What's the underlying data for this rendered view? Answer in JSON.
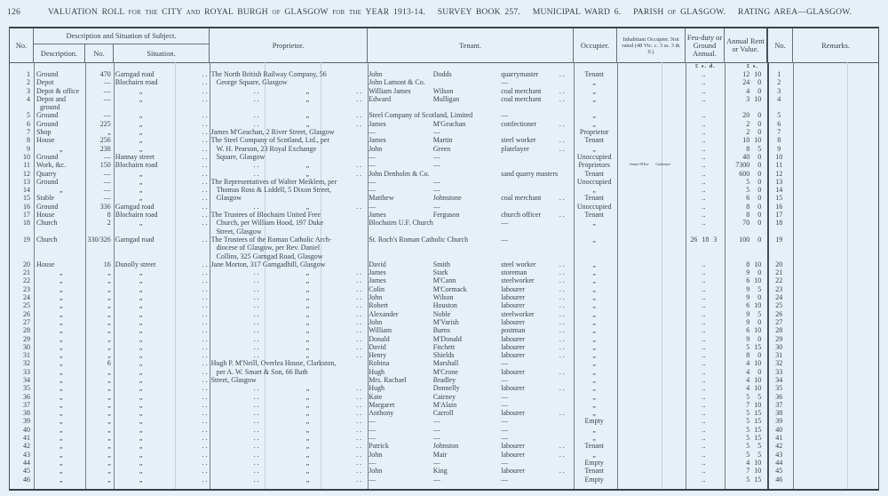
{
  "header": {
    "page_number": "126",
    "title": "VALUATION ROLL for the CITY and ROYAL BURGH of GLASGOW for the YEAR 1913-14.   SURVEY BOOK 257.   MUNICIPAL WARD 6.   PARISH of GLASGOW.   RATING AREA—GLASGOW."
  },
  "columns": {
    "no": "No.",
    "group": "Description and Situation of Subject.",
    "description": "Description.",
    "number": "No.",
    "situation": "Situation.",
    "proprietor": "Proprietor.",
    "tenant": "Tenant.",
    "occupier": "Occupier.",
    "inhabitant": "Inhabitant Occupier. Not rated (48 Vic. c. 3 ss. 3 & 9.)",
    "feu": "Feu-duty or Ground Annual.",
    "rent": "Annual Rent or Value.",
    "no2": "No.",
    "remarks": "Remarks.",
    "feu_units": "£ s. d.",
    "rent_units": "£ s."
  },
  "rows": [
    {
      "no": "1",
      "desc": [
        "Ground"
      ],
      "num": "470",
      "sit": "Garngad road",
      "prop": [
        "The North British Railway Company, 56"
      ],
      "ten": [
        "John",
        "Dodds",
        "quarrymaster"
      ],
      "occ": "Tenant",
      "feu": "..",
      "rent": [
        "12",
        "10"
      ]
    },
    {
      "no": "2",
      "desc": [
        "Depot"
      ],
      "num": "—",
      "sit": "Blochairn road",
      "prop": [
        "+George Square, Glasgow"
      ],
      "tenfull": "John Lamont & Co.",
      "tenocc": "—",
      "occ": "„",
      "feu": "..",
      "rent": [
        "24",
        "0"
      ]
    },
    {
      "no": "3",
      "desc": [
        "Depot & office"
      ],
      "num": "—",
      "sit": "„",
      "prop": [
        "„"
      ],
      "ten": [
        "William James",
        "Wilson",
        "coal merchant"
      ],
      "occ": "„",
      "feu": "..",
      "rent": [
        "4",
        "0"
      ]
    },
    {
      "no": "4",
      "desc": [
        "Depot and",
        "  ground"
      ],
      "num": "—",
      "sit": "„",
      "prop": [
        "„"
      ],
      "ten": [
        "Edward",
        "Mulligan",
        "coal merchant"
      ],
      "occ": "„",
      "feu": "..",
      "rent": [
        "3",
        "10"
      ]
    },
    {
      "no": "5",
      "desc": [
        "Ground"
      ],
      "num": "—",
      "sit": "„",
      "prop": [
        "„"
      ],
      "tenfull": "Steel Company of Scotland, Limited",
      "tenocc": "—",
      "occ": "„",
      "feu": "..",
      "rent": [
        "20",
        "0"
      ]
    },
    {
      "no": "6",
      "desc": [
        "Ground"
      ],
      "num": "225",
      "sit": "„",
      "prop": [
        "„"
      ],
      "ten": [
        "James",
        "M'Geachan",
        "confectioner"
      ],
      "occ": "„",
      "feu": "..",
      "rent": [
        "2",
        "0"
      ]
    },
    {
      "no": "7",
      "desc": [
        "Shop"
      ],
      "num": "„",
      "sit": "„",
      "prop": [
        "James M'Geachan, 2 River Street, Glasgow"
      ],
      "ten": [
        "—",
        "—",
        ""
      ],
      "occ": "Proprietor",
      "feu": "..",
      "rent": [
        "2",
        "0"
      ]
    },
    {
      "no": "8",
      "desc": [
        "House"
      ],
      "num": "256",
      "sit": "„",
      "prop": [
        "The Steel Company of Scotland, Ltd., per"
      ],
      "ten": [
        "James",
        "Martin",
        "steel worker"
      ],
      "occ": "Tenant",
      "feu": "..",
      "rent": [
        "10",
        "10"
      ]
    },
    {
      "no": "9",
      "desc": [
        "„"
      ],
      "num": "238",
      "sit": "„",
      "prop": [
        "+W. H. Pearson, 23 Royal Exchange"
      ],
      "ten": [
        "John",
        "Green",
        "platelayer"
      ],
      "occ": "„",
      "feu": "..",
      "rent": [
        "8",
        "5"
      ]
    },
    {
      "no": "10",
      "desc": [
        "Ground"
      ],
      "num": "—",
      "sit": "Hannay street",
      "prop": [
        "+Square, Glasgow"
      ],
      "ten": [
        "—",
        "—",
        ""
      ],
      "occ": "Unoccupied",
      "feu": "..",
      "rent": [
        "40",
        "0"
      ]
    },
    {
      "no": "11",
      "desc": [
        "Work, &c."
      ],
      "num": "150",
      "sit": "Blochairn road",
      "prop": [
        "„"
      ],
      "ten": [
        "—",
        "—",
        ""
      ],
      "occ": "Proprietors",
      "inh": [
        "Samuel M'Kee",
        "Gatekeeper"
      ],
      "feu": "..",
      "rent": [
        "7300",
        "0"
      ]
    },
    {
      "no": "12",
      "desc": [
        "Quarry"
      ],
      "num": "—",
      "sit": "„",
      "prop": [
        "„"
      ],
      "tenfull": "John Denholm & Co.",
      "tenocc": "sand quarry masters",
      "occ": "Tenant",
      "feu": "..",
      "rent": [
        "600",
        "0"
      ]
    },
    {
      "no": "13",
      "desc": [
        "Ground"
      ],
      "num": "—",
      "sit": "„",
      "prop": [
        "The Representatives of Walter Meiklem, per"
      ],
      "ten": [
        "—",
        "—",
        ""
      ],
      "occ": "Unoccupied",
      "feu": "..",
      "rent": [
        "5",
        "0"
      ]
    },
    {
      "no": "14",
      "desc": [
        "„"
      ],
      "num": "—",
      "sit": "„",
      "prop": [
        "+Thomas Ross & Liddell, 5 Dixon Street,"
      ],
      "ten": [
        "—",
        "—",
        ""
      ],
      "occ": "„",
      "feu": "..",
      "rent": [
        "5",
        "0"
      ]
    },
    {
      "no": "15",
      "desc": [
        "Stable"
      ],
      "num": "—",
      "sit": "„",
      "prop": [
        "+Glasgow"
      ],
      "ten": [
        "Matthew",
        "Johnstone",
        "coal merchant"
      ],
      "occ": "Tenant",
      "feu": "..",
      "rent": [
        "6",
        "0"
      ]
    },
    {
      "no": "16",
      "desc": [
        "Ground"
      ],
      "num": "336",
      "sit": "Garngad road",
      "prop": [
        "„"
      ],
      "ten": [
        "—",
        "—",
        ""
      ],
      "occ": "Unoccupied",
      "feu": "..",
      "rent": [
        "8",
        "0"
      ]
    },
    {
      "no": "17",
      "desc": [
        "House"
      ],
      "num": "8",
      "sit": "Blochairn road",
      "prop": [
        "The Trustees of Blochairn United Free"
      ],
      "ten": [
        "James",
        "Ferguson",
        "church officer"
      ],
      "occ": "Tenant",
      "feu": "..",
      "rent": [
        "8",
        "0"
      ]
    },
    {
      "no": "18",
      "desc": [
        "Church"
      ],
      "num": "2",
      "sit": "„",
      "prop": [
        "+Church, per William Hood, 197 Duke",
        "+Street, Glasgow"
      ],
      "tenfull": "Blochairn U.F. Church",
      "tenocc": "—",
      "occ": "„",
      "feu": "..",
      "rent": [
        "70",
        "0"
      ]
    },
    {
      "no": "19",
      "desc": [
        "Church"
      ],
      "num": "330/326",
      "sit": "Garngad road",
      "prop": [
        "The Trustees of the Roman Catholic Arch-",
        "+diocese of Glasgow, per Rev. Daniel",
        "+Collins, 325 Garngad Road, Glasgow"
      ],
      "tenfull": "St. Roch's Roman Catholic Church",
      "tenocc": "—",
      "occ": "„",
      "feu": "26 18 3",
      "rent": [
        "100",
        "0"
      ]
    },
    {
      "no": "20",
      "desc": [
        "House"
      ],
      "num": "16",
      "sit": "Dunolly street",
      "prop": [
        "Jane Morton, 317 Garngadhill, Glasgow"
      ],
      "ten": [
        "David",
        "Smith",
        "steel worker"
      ],
      "occ": "„",
      "feu": "..",
      "rent": [
        "8",
        "10"
      ]
    },
    {
      "no": "21",
      "desc": [
        "„"
      ],
      "num": "„",
      "sit": "„",
      "prop": [
        "„"
      ],
      "ten": [
        "James",
        "Stark",
        "storeman"
      ],
      "occ": "„",
      "feu": "..",
      "rent": [
        "9",
        "0"
      ]
    },
    {
      "no": "22",
      "desc": [
        "„"
      ],
      "num": "„",
      "sit": "„",
      "prop": [
        "„"
      ],
      "ten": [
        "James",
        "M'Cann",
        "steelworker"
      ],
      "occ": "„",
      "feu": "..",
      "rent": [
        "6",
        "10"
      ]
    },
    {
      "no": "23",
      "desc": [
        "„"
      ],
      "num": "„",
      "sit": "„",
      "prop": [
        "„"
      ],
      "ten": [
        "Colin",
        "M'Cormack",
        "labourer"
      ],
      "occ": "„",
      "feu": "..",
      "rent": [
        "9",
        "5"
      ]
    },
    {
      "no": "24",
      "desc": [
        "„"
      ],
      "num": "„",
      "sit": "„",
      "prop": [
        "„"
      ],
      "ten": [
        "John",
        "Wilson",
        "labourer"
      ],
      "occ": "„",
      "feu": "..",
      "rent": [
        "9",
        "0"
      ]
    },
    {
      "no": "25",
      "desc": [
        "„"
      ],
      "num": "„",
      "sit": "„",
      "prop": [
        "„"
      ],
      "ten": [
        "Robert",
        "Houston",
        "labourer"
      ],
      "occ": "„",
      "feu": "..",
      "rent": [
        "6",
        "10"
      ]
    },
    {
      "no": "26",
      "desc": [
        "„"
      ],
      "num": "„",
      "sit": "„",
      "prop": [
        "„"
      ],
      "ten": [
        "Alexander",
        "Noble",
        "steelworker"
      ],
      "occ": "„",
      "feu": "..",
      "rent": [
        "9",
        "5"
      ]
    },
    {
      "no": "27",
      "desc": [
        "„"
      ],
      "num": "„",
      "sit": "„",
      "prop": [
        "„"
      ],
      "ten": [
        "John",
        "M'Varish",
        "labourer"
      ],
      "occ": "„",
      "feu": "..",
      "rent": [
        "9",
        "0"
      ]
    },
    {
      "no": "28",
      "desc": [
        "„"
      ],
      "num": "„",
      "sit": "„",
      "prop": [
        "„"
      ],
      "ten": [
        "William",
        "Burns",
        "postman"
      ],
      "occ": "„",
      "feu": "..",
      "rent": [
        "6",
        "10"
      ]
    },
    {
      "no": "29",
      "desc": [
        "„"
      ],
      "num": "„",
      "sit": "„",
      "prop": [
        "„"
      ],
      "ten": [
        "Donald",
        "M'Donald",
        "labourer"
      ],
      "occ": "„",
      "feu": "..",
      "rent": [
        "9",
        "0"
      ]
    },
    {
      "no": "30",
      "desc": [
        "„"
      ],
      "num": "„",
      "sit": "„",
      "prop": [
        "„"
      ],
      "ten": [
        "David",
        "Fitchett",
        "labourer"
      ],
      "occ": "„",
      "feu": "..",
      "rent": [
        "5",
        "15"
      ]
    },
    {
      "no": "31",
      "desc": [
        "„"
      ],
      "num": "„",
      "sit": "„",
      "prop": [
        "„"
      ],
      "ten": [
        "Henry",
        "Shields",
        "labourer"
      ],
      "occ": "„",
      "feu": "..",
      "rent": [
        "8",
        "0"
      ]
    },
    {
      "no": "32",
      "desc": [
        "„"
      ],
      "num": "6",
      "sit": "„",
      "prop": [
        "Hugh P. M'Neill, Overlea House, Clarkston,"
      ],
      "ten": [
        "Robina",
        "Marshall",
        "—"
      ],
      "occ": "„",
      "feu": "..",
      "rent": [
        "4",
        "10"
      ]
    },
    {
      "no": "33",
      "desc": [
        "„"
      ],
      "num": "„",
      "sit": "„",
      "prop": [
        "+per A. W. Smart & Son, 66 Bath"
      ],
      "ten": [
        "Hugh",
        "M'Crone",
        "labourer"
      ],
      "occ": "„",
      "feu": "..",
      "rent": [
        "4",
        "0"
      ]
    },
    {
      "no": "34",
      "desc": [
        "„"
      ],
      "num": "„",
      "sit": "„",
      "prop": [
        "Street, Glasgow"
      ],
      "ten": [
        "Mrs. Rachael",
        "Bradley",
        "—"
      ],
      "occ": "„",
      "feu": "..",
      "rent": [
        "4",
        "10"
      ]
    },
    {
      "no": "35",
      "desc": [
        "„"
      ],
      "num": "„",
      "sit": "„",
      "prop": [
        "„"
      ],
      "ten": [
        "Hugh",
        "Donnelly",
        "labourer"
      ],
      "occ": "„",
      "feu": "..",
      "rent": [
        "4",
        "10"
      ]
    },
    {
      "no": "36",
      "desc": [
        "„"
      ],
      "num": "„",
      "sit": "„",
      "prop": [
        "„"
      ],
      "ten": [
        "Kate",
        "Cairney",
        "—"
      ],
      "occ": "„",
      "feu": "..",
      "rent": [
        "5",
        "5"
      ]
    },
    {
      "no": "37",
      "desc": [
        "„"
      ],
      "num": "„",
      "sit": "„",
      "prop": [
        "„"
      ],
      "ten": [
        "Margaret",
        "M'Alain",
        "—"
      ],
      "occ": "„",
      "feu": "..",
      "rent": [
        "7",
        "10"
      ]
    },
    {
      "no": "38",
      "desc": [
        "„"
      ],
      "num": "„",
      "sit": "„",
      "prop": [
        "„"
      ],
      "ten": [
        "Anthony",
        "Carroll",
        "labourer"
      ],
      "occ": "„",
      "feu": "..",
      "rent": [
        "5",
        "15"
      ]
    },
    {
      "no": "39",
      "desc": [
        "„"
      ],
      "num": "„",
      "sit": "„",
      "prop": [
        "„"
      ],
      "ten": [
        "—",
        "—",
        "—"
      ],
      "occ": "Empty",
      "feu": "..",
      "rent": [
        "5",
        "15"
      ]
    },
    {
      "no": "40",
      "desc": [
        "„"
      ],
      "num": "„",
      "sit": "„",
      "prop": [
        "„"
      ],
      "ten": [
        "—",
        "—",
        "—"
      ],
      "occ": "„",
      "feu": "..",
      "rent": [
        "5",
        "15"
      ]
    },
    {
      "no": "41",
      "desc": [
        "„"
      ],
      "num": "„",
      "sit": "„",
      "prop": [
        "„"
      ],
      "ten": [
        "—",
        "—",
        "—"
      ],
      "occ": "„",
      "feu": "..",
      "rent": [
        "5",
        "15"
      ]
    },
    {
      "no": "42",
      "desc": [
        "„"
      ],
      "num": "„",
      "sit": "„",
      "prop": [
        "„"
      ],
      "ten": [
        "Patrick",
        "Johnston",
        "labourer"
      ],
      "occ": "Tenant",
      "feu": "..",
      "rent": [
        "5",
        "5"
      ]
    },
    {
      "no": "43",
      "desc": [
        "„"
      ],
      "num": "„",
      "sit": "„",
      "prop": [
        "„"
      ],
      "ten": [
        "John",
        "Mair",
        "labourer"
      ],
      "occ": "„",
      "feu": "..",
      "rent": [
        "5",
        "5"
      ]
    },
    {
      "no": "44",
      "desc": [
        "„"
      ],
      "num": "„",
      "sit": "„",
      "prop": [
        "„"
      ],
      "ten": [
        "—",
        "—",
        "—"
      ],
      "occ": "Empty",
      "feu": "..",
      "rent": [
        "4",
        "10"
      ]
    },
    {
      "no": "45",
      "desc": [
        "„"
      ],
      "num": "„",
      "sit": "„",
      "prop": [
        "„"
      ],
      "ten": [
        "John",
        "King",
        "labourer"
      ],
      "occ": "Tenant",
      "feu": "..",
      "rent": [
        "7",
        "10"
      ]
    },
    {
      "no": "46",
      "desc": [
        "„"
      ],
      "num": "„",
      "sit": "„",
      "prop": [
        "„"
      ],
      "ten": [
        "—",
        "—",
        "—"
      ],
      "occ": "Empty",
      "feu": "..",
      "rent": [
        "5",
        "15"
      ]
    }
  ]
}
